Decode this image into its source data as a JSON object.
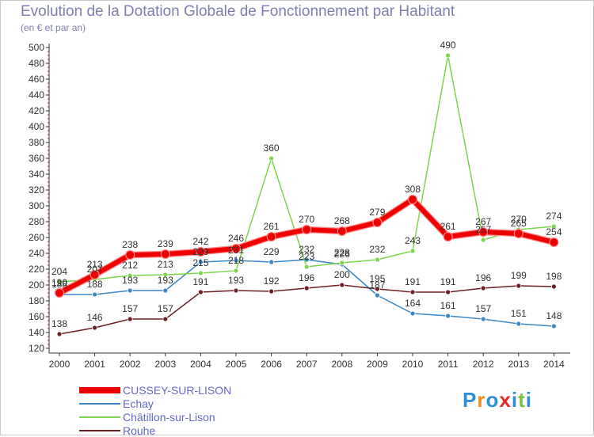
{
  "title": "Evolution de la Dotation Globale de Fonctionnement par Habitant",
  "subtitle": "(en € et par an)",
  "logo": "Proxiti",
  "chart_data": {
    "type": "line",
    "title": "Evolution de la Dotation Globale de Fonctionnement par Habitant",
    "subtitle": "(en € et par an)",
    "x": [
      "2000",
      "2001",
      "2002",
      "2003",
      "2004",
      "2005",
      "2006",
      "2007",
      "2008",
      "2009",
      "2010",
      "2011",
      "2012",
      "2013",
      "2014"
    ],
    "ylim": [
      120,
      500
    ],
    "yticks": [
      120,
      140,
      160,
      180,
      200,
      220,
      240,
      260,
      280,
      300,
      320,
      340,
      360,
      380,
      400,
      420,
      440,
      460,
      480,
      500
    ],
    "grid": false,
    "legend_position": "bottom-left",
    "series": [
      {
        "name": "CUSSEY-SUR-LISON",
        "color": "#ee0000",
        "values": [
          190,
          213,
          238,
          239,
          242,
          246,
          261,
          270,
          268,
          279,
          308,
          261,
          267,
          265,
          254
        ]
      },
      {
        "name": "Echay",
        "color": "#3b87c6",
        "values": [
          188,
          188,
          193,
          193,
          229,
          231,
          229,
          232,
          226,
          187,
          164,
          161,
          157,
          151,
          148
        ]
      },
      {
        "name": "Châtillon-sur-Lison",
        "color": "#7ed64e",
        "values": [
          204,
          207,
          212,
          213,
          215,
          218,
          360,
          223,
          228,
          232,
          243,
          490,
          257,
          270,
          274
        ]
      },
      {
        "name": "Rouhe",
        "color": "#6b1f25",
        "values": [
          138,
          146,
          157,
          157,
          191,
          193,
          192,
          196,
          200,
          195,
          191,
          191,
          196,
          199,
          198
        ]
      }
    ]
  }
}
